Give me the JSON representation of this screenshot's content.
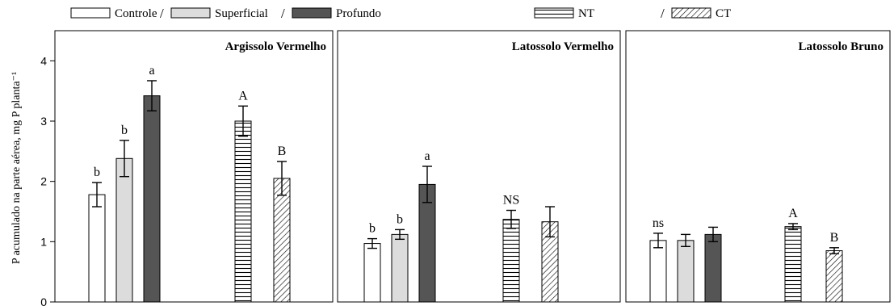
{
  "legend": {
    "items": [
      {
        "key": "controle",
        "label": "Controle",
        "fill": "white"
      },
      {
        "key": "superficial",
        "label": "Superficial",
        "fill": "#dcdcdc"
      },
      {
        "key": "profundo",
        "label": "Profundo",
        "fill": "#555555"
      },
      {
        "key": "nt",
        "label": "NT",
        "fill": "horiz"
      },
      {
        "key": "ct",
        "label": "CT",
        "fill": "diag"
      }
    ]
  },
  "chart_data": {
    "type": "bar",
    "ylabel": "P acumulado na parte aérea, mg P planta⁻¹",
    "ylim": [
      0,
      4.5
    ],
    "yticks": [
      "0",
      "1",
      "2",
      "3",
      "4"
    ],
    "panels": [
      {
        "title": "Argissolo Vermelho",
        "bars": [
          {
            "series": "Controle",
            "value": 1.78,
            "error": 0.2,
            "letter": "b"
          },
          {
            "series": "Superficial",
            "value": 2.38,
            "error": 0.3,
            "letter": "b"
          },
          {
            "series": "Profundo",
            "value": 3.42,
            "error": 0.25,
            "letter": "a"
          },
          {
            "series": "NT",
            "value": 3.0,
            "error": 0.25,
            "letter": "A"
          },
          {
            "series": "CT",
            "value": 2.05,
            "error": 0.28,
            "letter": "B"
          }
        ]
      },
      {
        "title": "Latossolo Vermelho",
        "bars": [
          {
            "series": "Controle",
            "value": 0.97,
            "error": 0.08,
            "letter": "b"
          },
          {
            "series": "Superficial",
            "value": 1.12,
            "error": 0.08,
            "letter": "b"
          },
          {
            "series": "Profundo",
            "value": 1.95,
            "error": 0.3,
            "letter": "a"
          },
          {
            "series": "NT",
            "value": 1.37,
            "error": 0.15,
            "letter": "NS"
          },
          {
            "series": "CT",
            "value": 1.33,
            "error": 0.25,
            "letter": ""
          }
        ]
      },
      {
        "title": "Latossolo Bruno",
        "bars": [
          {
            "series": "Controle",
            "value": 1.02,
            "error": 0.12,
            "letter": "ns"
          },
          {
            "series": "Superficial",
            "value": 1.02,
            "error": 0.1,
            "letter": ""
          },
          {
            "series": "Profundo",
            "value": 1.12,
            "error": 0.12,
            "letter": ""
          },
          {
            "series": "NT",
            "value": 1.25,
            "error": 0.05,
            "letter": "A"
          },
          {
            "series": "CT",
            "value": 0.85,
            "error": 0.05,
            "letter": "B"
          }
        ]
      }
    ]
  }
}
